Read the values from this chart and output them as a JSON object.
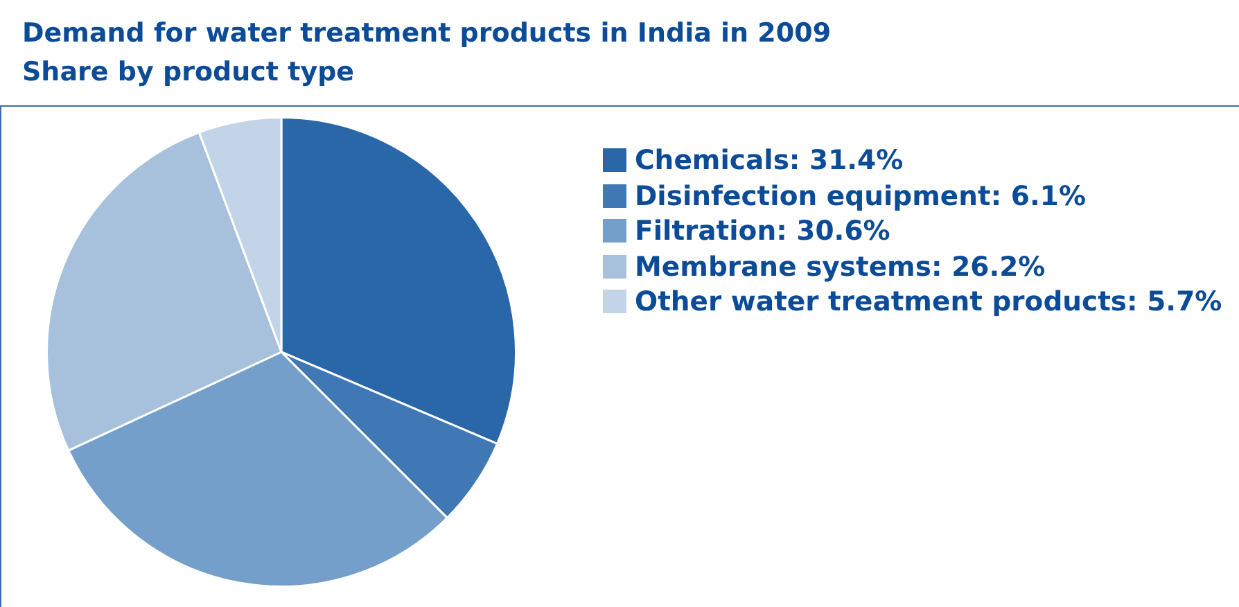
{
  "chart_data": {
    "type": "pie",
    "title": "Demand for water treatment products in India in 2009",
    "subtitle": "Share by product type",
    "categories": [
      "Chemicals",
      "Disinfection equipment",
      "Filtration",
      "Membrane systems",
      "Other water treatment products"
    ],
    "values": [
      31.4,
      6.1,
      30.6,
      26.2,
      5.7
    ],
    "value_labels": [
      "31.4%",
      "6.1%",
      "30.6%",
      "26.2%",
      "5.7%"
    ],
    "colors": [
      "#2a67a8",
      "#3f78b4",
      "#749fca",
      "#a7c0dc",
      "#c3d4e8"
    ],
    "legend": "right"
  }
}
